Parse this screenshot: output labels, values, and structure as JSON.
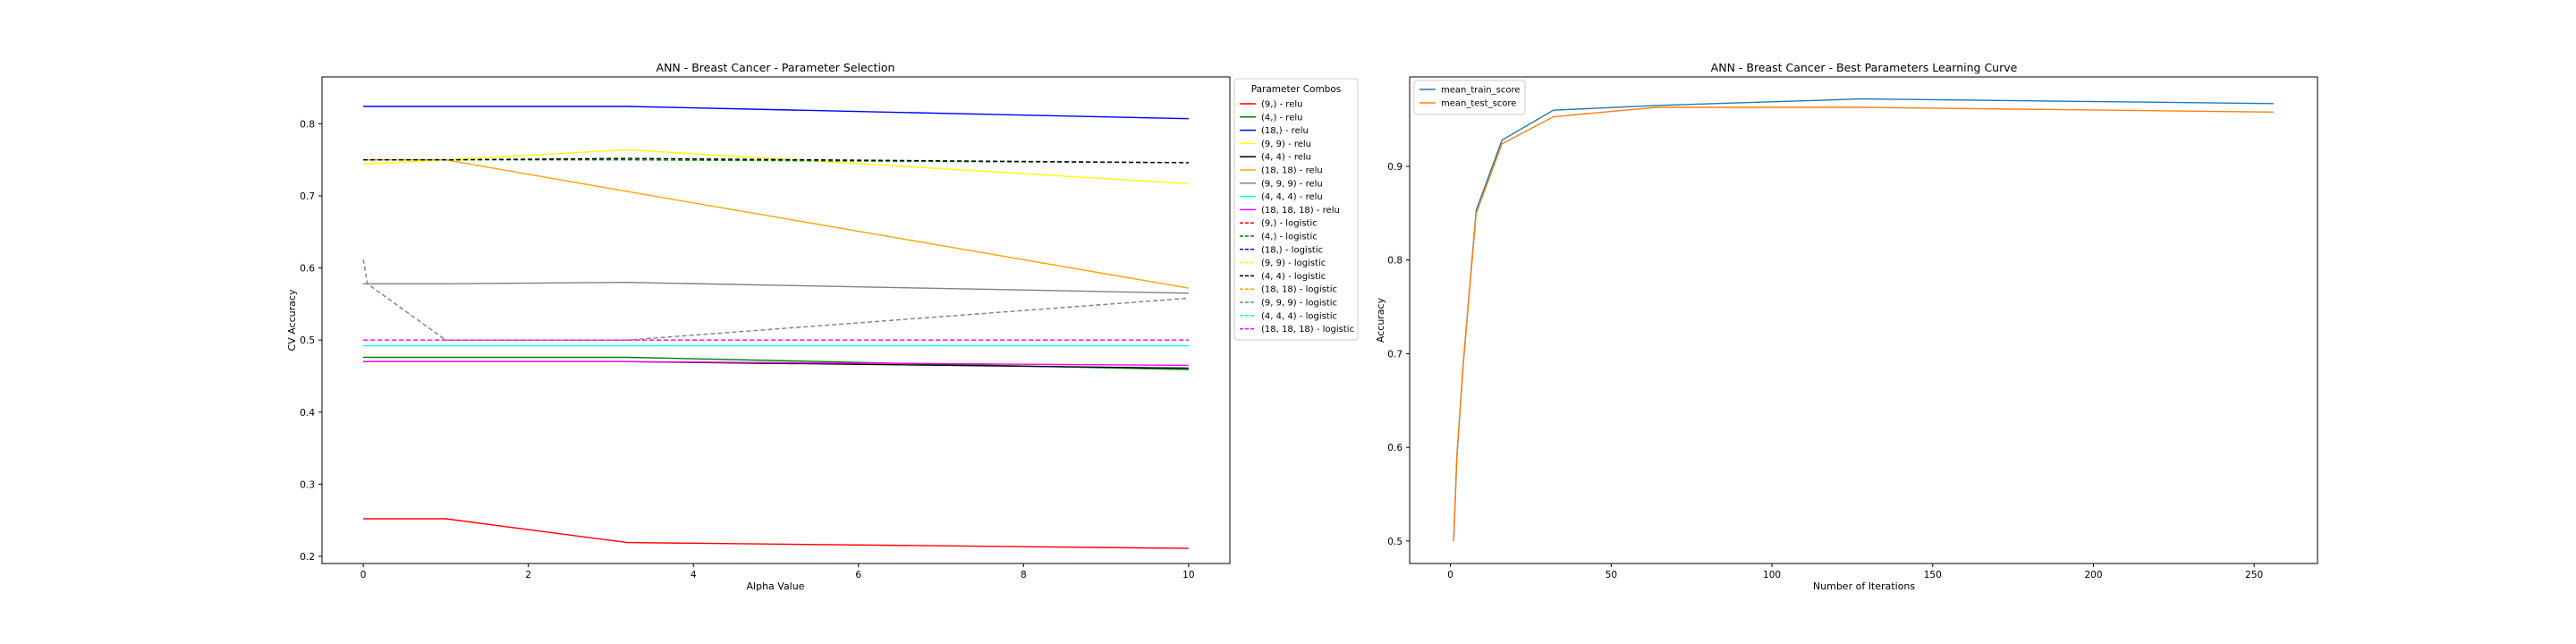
{
  "chart_data": [
    {
      "type": "line",
      "title": "ANN - Breast Cancer - Parameter Selection",
      "xlabel": "Alpha Value",
      "ylabel": "CV Accuracy",
      "xlim": [
        -0.5,
        10.5
      ],
      "ylim": [
        0.19,
        0.865
      ],
      "xticks": [
        0,
        2,
        4,
        6,
        8,
        10
      ],
      "yticks": [
        0.2,
        0.3,
        0.4,
        0.5,
        0.6,
        0.7,
        0.8
      ],
      "grid": false,
      "legend": {
        "title": "Parameter Combos",
        "placement": "outside-right"
      },
      "series": [
        {
          "name": "(9,) - relu",
          "color": "#ff0000",
          "dash": "solid",
          "x": [
            0,
            1,
            3.2,
            10
          ],
          "values": [
            0.252,
            0.252,
            0.219,
            0.211
          ]
        },
        {
          "name": "(4,) - relu",
          "color": "#008000",
          "dash": "solid",
          "x": [
            0,
            1,
            3.2,
            10
          ],
          "values": [
            0.476,
            0.476,
            0.476,
            0.459
          ]
        },
        {
          "name": "(18,) - relu",
          "color": "#0000ff",
          "dash": "solid",
          "x": [
            0,
            1,
            3.2,
            10
          ],
          "values": [
            0.824,
            0.824,
            0.824,
            0.807
          ]
        },
        {
          "name": "(9, 9) - relu",
          "color": "#ffff00",
          "dash": "solid",
          "x": [
            0,
            1,
            3.2,
            10
          ],
          "values": [
            0.744,
            0.75,
            0.764,
            0.717
          ]
        },
        {
          "name": "(4, 4) - relu",
          "color": "#000000",
          "dash": "solid",
          "x": [
            0,
            1,
            3.2,
            10
          ],
          "values": [
            0.47,
            0.47,
            0.47,
            0.461
          ]
        },
        {
          "name": "(18, 18) - relu",
          "color": "#ffa500",
          "dash": "solid",
          "x": [
            0,
            1,
            3.2,
            10
          ],
          "values": [
            0.75,
            0.75,
            0.706,
            0.572
          ]
        },
        {
          "name": "(9, 9, 9) - relu",
          "color": "#808080",
          "dash": "solid",
          "x": [
            0,
            1,
            3.2,
            10
          ],
          "values": [
            0.578,
            0.578,
            0.58,
            0.565
          ]
        },
        {
          "name": "(4, 4, 4) - relu",
          "color": "#00ffff",
          "dash": "solid",
          "x": [
            0,
            1,
            3.2,
            10
          ],
          "values": [
            0.492,
            0.492,
            0.492,
            0.492
          ]
        },
        {
          "name": "(18, 18, 18) - relu",
          "color": "#ff00ff",
          "dash": "solid",
          "x": [
            0,
            1,
            3.2,
            10
          ],
          "values": [
            0.47,
            0.47,
            0.47,
            0.465
          ]
        },
        {
          "name": "(9,) - logistic",
          "color": "#ff0000",
          "dash": "dashed",
          "x": [
            0,
            1,
            3.2,
            10
          ],
          "values": [
            0.5,
            0.5,
            0.5,
            0.5
          ]
        },
        {
          "name": "(4,) - logistic",
          "color": "#008000",
          "dash": "dashed",
          "x": [
            0,
            1,
            3.2,
            10
          ],
          "values": [
            0.75,
            0.75,
            0.75,
            0.746
          ]
        },
        {
          "name": "(18,) - logistic",
          "color": "#0000ff",
          "dash": "dashed",
          "x": [
            0,
            1,
            3.2,
            10
          ],
          "values": [
            0.5,
            0.5,
            0.5,
            0.5
          ]
        },
        {
          "name": "(9, 9) - logistic",
          "color": "#ffff00",
          "dash": "dashed",
          "x": [
            0,
            1,
            3.2,
            10
          ],
          "values": [
            0.5,
            0.5,
            0.5,
            0.5
          ]
        },
        {
          "name": "(4, 4) - logistic",
          "color": "#000000",
          "dash": "dashed",
          "x": [
            0,
            1,
            3.2,
            10
          ],
          "values": [
            0.75,
            0.75,
            0.752,
            0.746
          ]
        },
        {
          "name": "(18, 18) - logistic",
          "color": "#ffa500",
          "dash": "dashed",
          "x": [
            0,
            1,
            3.2,
            10
          ],
          "values": [
            0.5,
            0.5,
            0.5,
            0.5
          ]
        },
        {
          "name": "(9, 9, 9) - logistic",
          "color": "#808080",
          "dash": "dashed",
          "x": [
            0,
            0.05,
            1,
            3.2,
            10
          ],
          "values": [
            0.612,
            0.578,
            0.5,
            0.5,
            0.558
          ]
        },
        {
          "name": "(4, 4, 4) - logistic",
          "color": "#00ffff",
          "dash": "dashed",
          "x": [
            0,
            1,
            3.2,
            10
          ],
          "values": [
            0.5,
            0.5,
            0.5,
            0.5
          ]
        },
        {
          "name": "(18, 18, 18) - logistic",
          "color": "#ff00ff",
          "dash": "dashed",
          "x": [
            0,
            1,
            3.2,
            10
          ],
          "values": [
            0.5,
            0.5,
            0.5,
            0.5
          ]
        }
      ]
    },
    {
      "type": "line",
      "title": "ANN - Breast Cancer - Best Parameters Learning Curve",
      "xlabel": "Number of Iterations",
      "ylabel": "Accuracy",
      "xlim": [
        -12.7,
        269.7
      ],
      "ylim": [
        0.476,
        0.9955
      ],
      "xticks": [
        0,
        50,
        100,
        150,
        200,
        250
      ],
      "yticks": [
        0.5,
        0.6,
        0.7,
        0.8,
        0.9
      ],
      "grid": false,
      "legend": {
        "placement": "top-left"
      },
      "series": [
        {
          "name": "mean_train_score",
          "color": "#1f77b4",
          "dash": "solid",
          "x": [
            1,
            2,
            4,
            8,
            16,
            32,
            64,
            128,
            256
          ],
          "values": [
            0.5,
            0.59,
            0.69,
            0.853,
            0.928,
            0.96,
            0.965,
            0.972,
            0.967
          ]
        },
        {
          "name": "mean_test_score",
          "color": "#ff7f0e",
          "dash": "solid",
          "x": [
            1,
            2,
            4,
            8,
            16,
            32,
            64,
            128,
            256
          ],
          "values": [
            0.5,
            0.59,
            0.69,
            0.85,
            0.924,
            0.953,
            0.963,
            0.963,
            0.958
          ]
        }
      ]
    }
  ]
}
